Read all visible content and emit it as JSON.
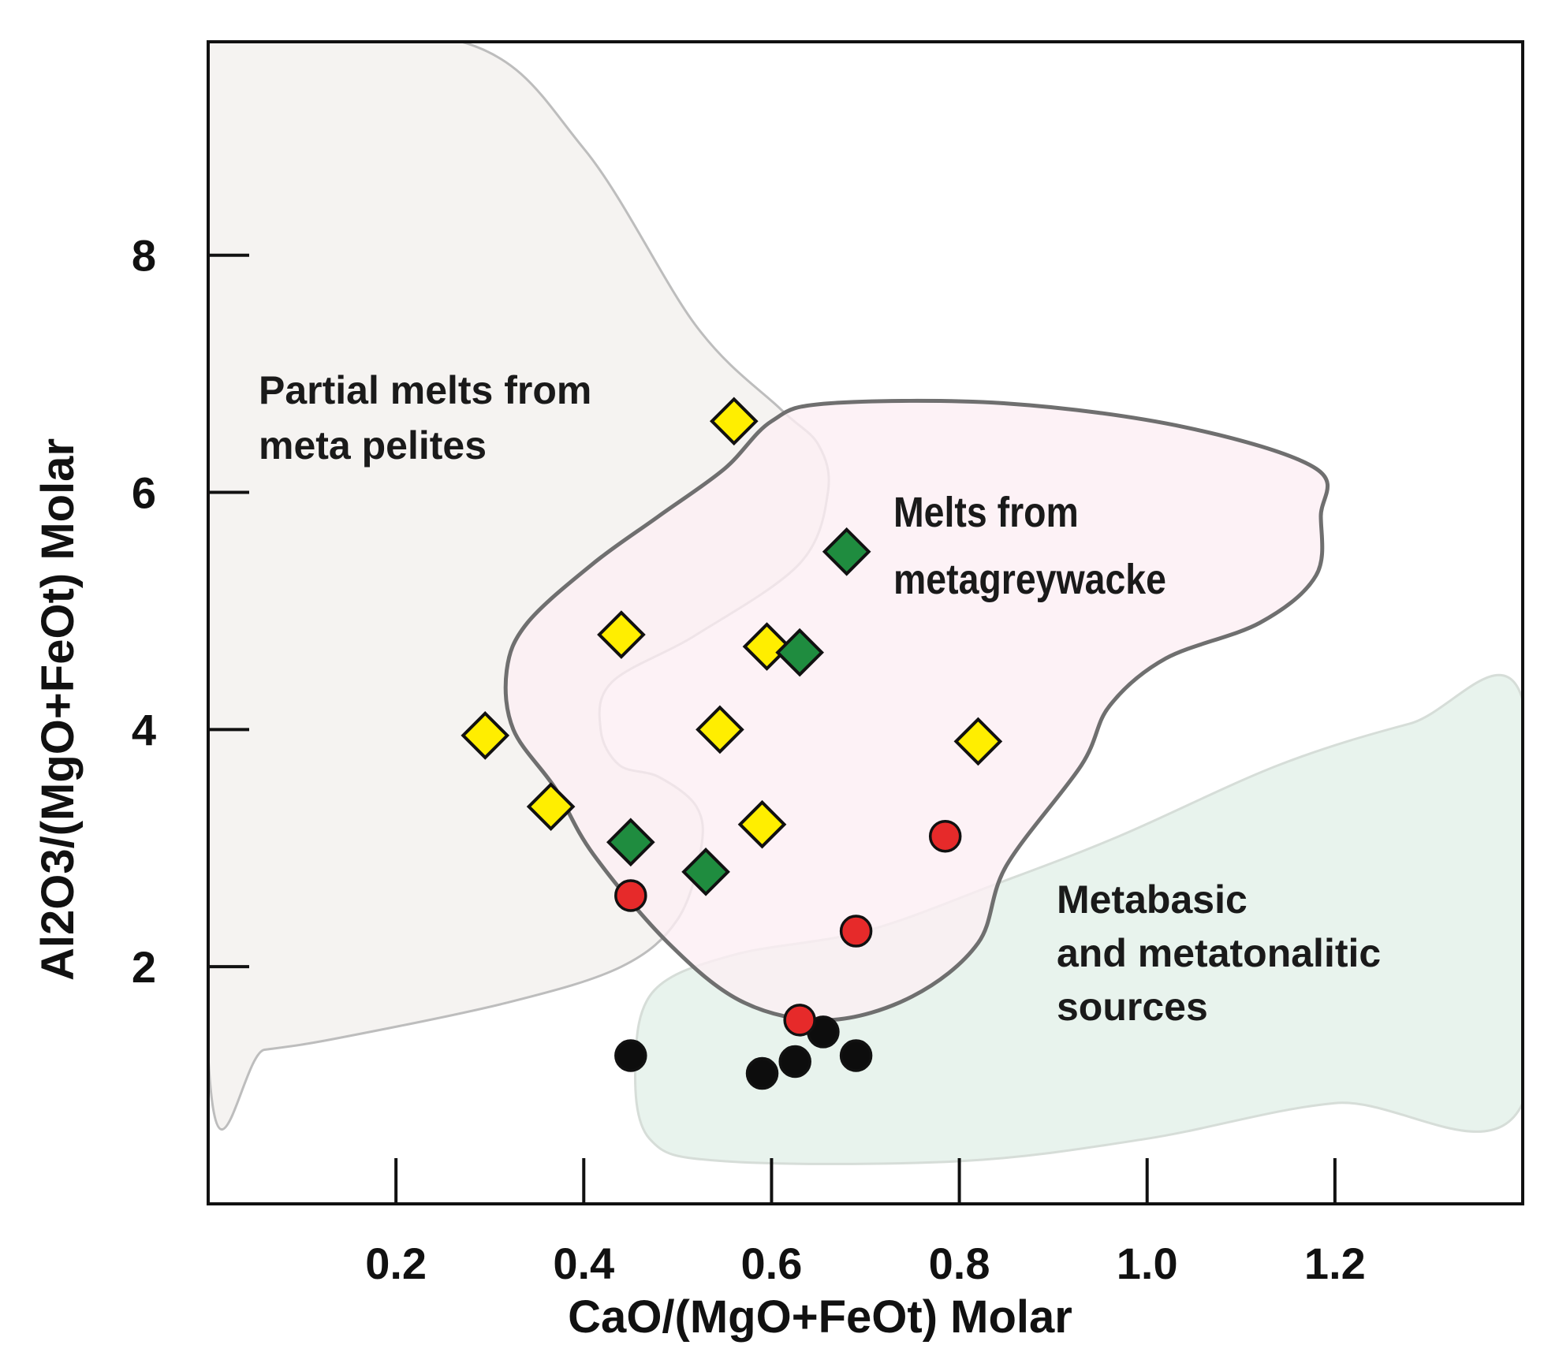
{
  "chart_data": {
    "type": "scatter",
    "title": "",
    "xlabel": "CaO/(MgO+FeOt) Molar",
    "ylabel": "Al2O3/(MgO+FeOt) Molar",
    "xlim": [
      0.0,
      1.4
    ],
    "ylim": [
      0.0,
      9.8
    ],
    "x_ticks": [
      0.2,
      0.4,
      0.6,
      0.8,
      1.0,
      1.2
    ],
    "x_tick_labels": [
      "0.2",
      "0.4",
      "0.6",
      "0.8",
      "1.0",
      "1.2"
    ],
    "y_ticks": [
      2,
      4,
      6,
      8
    ],
    "y_tick_labels": [
      "2",
      "4",
      "6",
      "8"
    ],
    "grid": false,
    "colors": {
      "metapelite_fill": "#f3f1ef",
      "metagreywacke_fill": "#fdeef4",
      "metabasic_fill": "#e4f1ea",
      "yellow": "#ffee00",
      "green": "#1f8c3f",
      "red": "#e62a2a",
      "black": "#0d0d0d"
    },
    "regions": [
      {
        "name": "Partial melts from meta pelites",
        "label_lines": [
          "Partial melts from",
          "meta pelites"
        ],
        "polygon": [
          [
            0.0,
            9.8
          ],
          [
            0.27,
            9.8
          ],
          [
            0.4,
            8.9
          ],
          [
            0.52,
            7.4
          ],
          [
            0.61,
            6.7
          ],
          [
            0.65,
            6.4
          ],
          [
            0.66,
            6.0
          ],
          [
            0.63,
            5.4
          ],
          [
            0.52,
            4.8
          ],
          [
            0.43,
            4.4
          ],
          [
            0.418,
            4.0
          ],
          [
            0.438,
            3.7
          ],
          [
            0.48,
            3.6
          ],
          [
            0.52,
            3.35
          ],
          [
            0.525,
            3.0
          ],
          [
            0.5,
            2.4
          ],
          [
            0.44,
            2.0
          ],
          [
            0.32,
            1.7
          ],
          [
            0.14,
            1.4
          ],
          [
            0.06,
            1.3
          ],
          [
            0.0,
            1.25
          ]
        ]
      },
      {
        "name": "Melts from metagreywacke",
        "label_lines": [
          "Melts from",
          "metagreywacke"
        ],
        "polygon": [
          [
            0.66,
            6.75
          ],
          [
            0.85,
            6.75
          ],
          [
            1.04,
            6.55
          ],
          [
            1.18,
            6.2
          ],
          [
            1.185,
            5.8
          ],
          [
            1.18,
            5.3
          ],
          [
            1.12,
            4.9
          ],
          [
            1.02,
            4.6
          ],
          [
            0.96,
            4.2
          ],
          [
            0.93,
            3.7
          ],
          [
            0.85,
            2.85
          ],
          [
            0.82,
            2.2
          ],
          [
            0.75,
            1.75
          ],
          [
            0.66,
            1.55
          ],
          [
            0.57,
            1.7
          ],
          [
            0.49,
            2.2
          ],
          [
            0.41,
            2.95
          ],
          [
            0.37,
            3.5
          ],
          [
            0.325,
            4.0
          ],
          [
            0.318,
            4.5
          ],
          [
            0.34,
            4.9
          ],
          [
            0.41,
            5.4
          ],
          [
            0.48,
            5.8
          ],
          [
            0.55,
            6.2
          ],
          [
            0.6,
            6.6
          ]
        ]
      },
      {
        "name": "Metabasic and metatonalitic sources",
        "label_lines": [
          "Metabasic",
          "and metatonalitic",
          "sources"
        ],
        "polygon": [
          [
            0.47,
            0.55
          ],
          [
            0.55,
            0.36
          ],
          [
            0.8,
            0.36
          ],
          [
            1.0,
            0.55
          ],
          [
            1.2,
            0.85
          ],
          [
            1.4,
            0.85
          ],
          [
            1.4,
            4.25
          ],
          [
            1.28,
            4.05
          ],
          [
            1.14,
            3.7
          ],
          [
            0.97,
            3.1
          ],
          [
            0.84,
            2.7
          ],
          [
            0.7,
            2.3
          ],
          [
            0.56,
            2.1
          ],
          [
            0.475,
            1.8
          ],
          [
            0.455,
            1.2
          ]
        ]
      }
    ],
    "series": [
      {
        "name": "yellow diamonds",
        "marker": "diamond",
        "color": "#ffee00",
        "points": [
          [
            0.56,
            6.6
          ],
          [
            0.44,
            4.8
          ],
          [
            0.595,
            4.7
          ],
          [
            0.295,
            3.95
          ],
          [
            0.545,
            4.0
          ],
          [
            0.82,
            3.9
          ],
          [
            0.365,
            3.35
          ],
          [
            0.59,
            3.2
          ]
        ]
      },
      {
        "name": "green diamonds",
        "marker": "diamond",
        "color": "#1f8c3f",
        "points": [
          [
            0.68,
            5.5
          ],
          [
            0.63,
            4.65
          ],
          [
            0.45,
            3.05
          ],
          [
            0.53,
            2.8
          ]
        ]
      },
      {
        "name": "red circles",
        "marker": "circle",
        "color": "#e62a2a",
        "points": [
          [
            0.45,
            2.6
          ],
          [
            0.785,
            3.1
          ],
          [
            0.69,
            2.3
          ],
          [
            0.63,
            1.55
          ]
        ]
      },
      {
        "name": "black circles",
        "marker": "circle",
        "color": "#0d0d0d",
        "points": [
          [
            0.45,
            1.25
          ],
          [
            0.59,
            1.1
          ],
          [
            0.625,
            1.2
          ],
          [
            0.655,
            1.45
          ],
          [
            0.69,
            1.25
          ]
        ]
      }
    ]
  }
}
